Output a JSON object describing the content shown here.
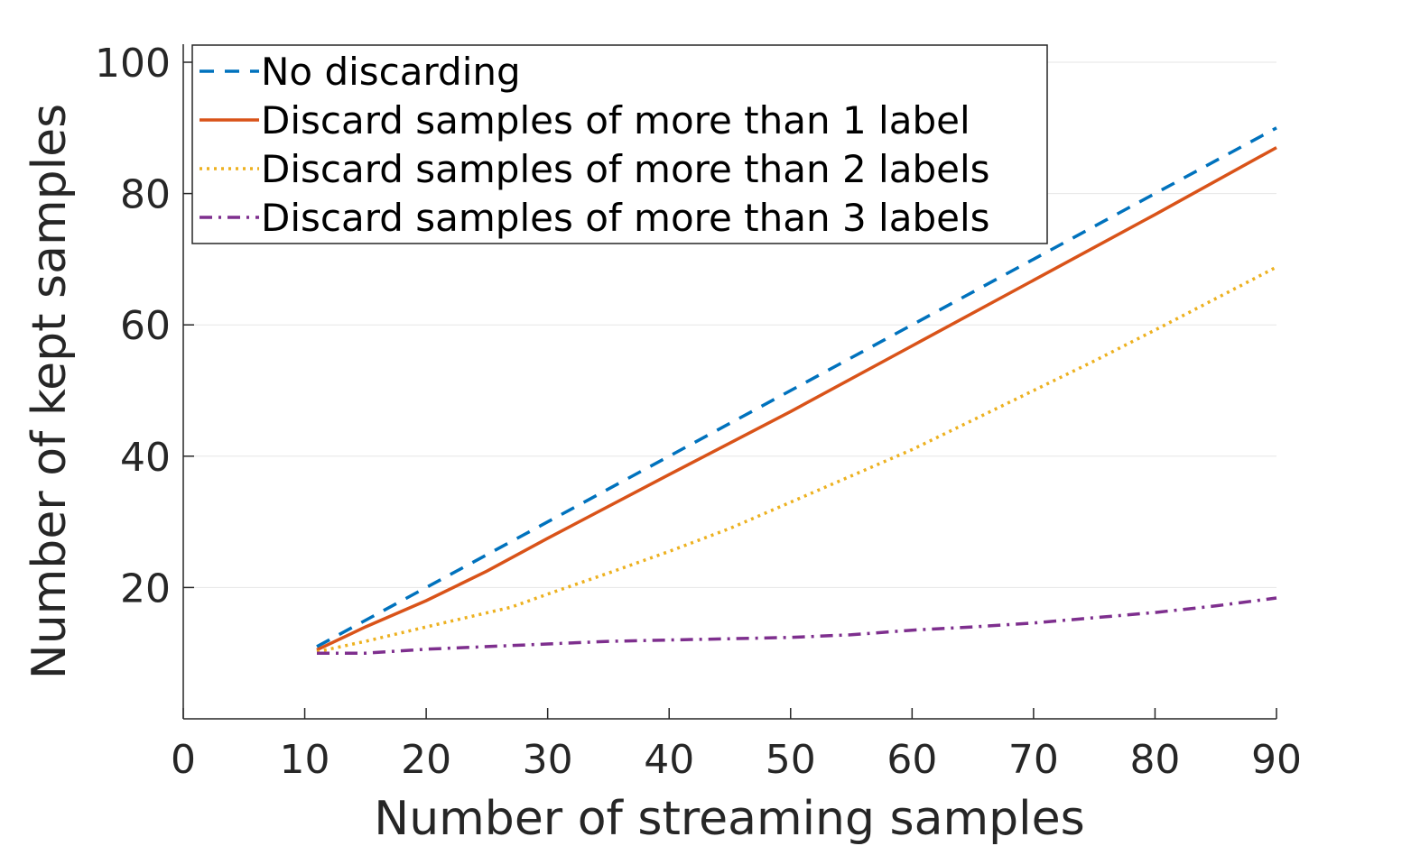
{
  "chart_data": {
    "type": "line",
    "title": "",
    "xlabel": "Number of streaming samples",
    "ylabel": "Number of kept samples",
    "xlim": [
      0,
      90
    ],
    "ylim": [
      0,
      100
    ],
    "xticks": [
      0,
      10,
      20,
      30,
      40,
      50,
      60,
      70,
      80,
      90
    ],
    "yticks": [
      20,
      40,
      60,
      80,
      100
    ],
    "grid": "horizontal",
    "legend_position": "top-left",
    "series": [
      {
        "name": "No discarding",
        "color": "#0072BD",
        "style": "dashed",
        "x": [
          11,
          20,
          30,
          40,
          50,
          60,
          70,
          80,
          90
        ],
        "y": [
          11,
          20,
          30,
          40,
          50,
          60,
          70,
          80,
          90
        ]
      },
      {
        "name": "Discard samples of more than 1 label",
        "color": "#D95319",
        "style": "solid",
        "x": [
          11,
          15,
          20,
          25,
          30,
          40,
          50,
          60,
          70,
          80,
          90
        ],
        "y": [
          10.5,
          14,
          18,
          22.5,
          27.5,
          37.2,
          46.8,
          56.8,
          66.8,
          76.8,
          87
        ]
      },
      {
        "name": "Discard samples of more than 2 labels",
        "color": "#EDB120",
        "style": "dotted",
        "x": [
          11,
          15,
          20,
          27,
          30,
          35,
          40,
          45,
          50,
          55,
          60,
          65,
          70,
          75,
          80,
          85,
          90
        ],
        "y": [
          10.2,
          11.8,
          14,
          17,
          19,
          22.2,
          25.5,
          29,
          33,
          37,
          41,
          45.5,
          50,
          54.5,
          59.2,
          64,
          68.8
        ]
      },
      {
        "name": "Discard samples of more than 3 labels",
        "color": "#7E2F8E",
        "style": "dashdot",
        "x": [
          11,
          15,
          20,
          25,
          30,
          35,
          40,
          45,
          50,
          55,
          60,
          65,
          70,
          75,
          80,
          85,
          90
        ],
        "y": [
          10,
          10,
          10.6,
          11,
          11.4,
          11.8,
          12,
          12.2,
          12.4,
          12.8,
          13.5,
          14,
          14.6,
          15.4,
          16.2,
          17.2,
          18.4
        ]
      }
    ]
  }
}
